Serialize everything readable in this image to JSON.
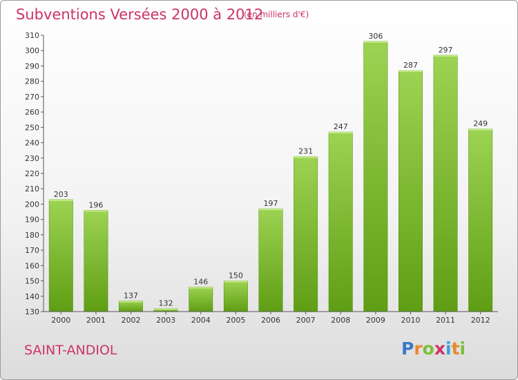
{
  "header": {
    "title": "Subventions Versées 2000 à 2012",
    "subtitle": "(en milliers d'€)"
  },
  "footer": {
    "commune": "SAINT-ANDIOL",
    "logo_letters": [
      "P",
      "r",
      "o",
      "x",
      "i",
      "t",
      "i"
    ],
    "logo_colors": [
      "#3a78c8",
      "#e8892a",
      "#7bbf3a",
      "#cc3366",
      "#3a9fd8",
      "#e8892a",
      "#7bbf3a"
    ]
  },
  "chart_data": {
    "type": "bar",
    "categories": [
      "2000",
      "2001",
      "2002",
      "2003",
      "2004",
      "2005",
      "2006",
      "2007",
      "2008",
      "2009",
      "2010",
      "2011",
      "2012"
    ],
    "values": [
      203,
      196,
      137,
      132,
      146,
      150,
      197,
      231,
      247,
      306,
      287,
      297,
      249
    ],
    "ylim": [
      130,
      310
    ],
    "yticks": [
      130,
      140,
      150,
      160,
      170,
      180,
      190,
      200,
      210,
      220,
      230,
      240,
      250,
      260,
      270,
      280,
      290,
      300,
      310
    ],
    "grid": false,
    "bar_color_top": "#9dd353",
    "bar_color_bottom": "#5f9e14"
  }
}
